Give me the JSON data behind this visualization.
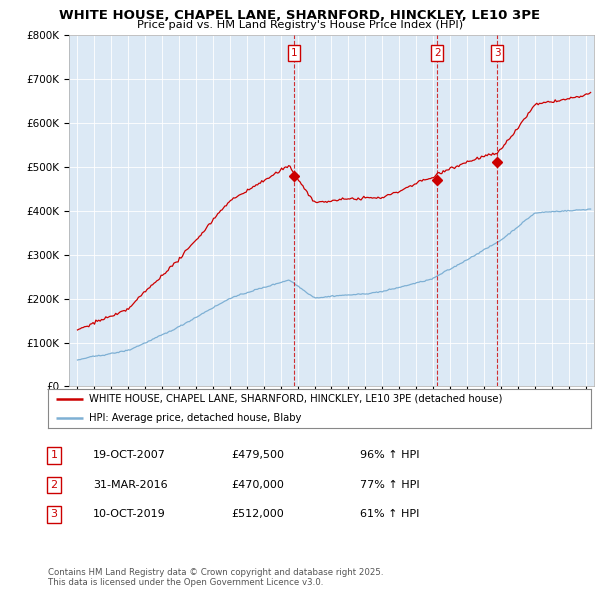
{
  "title": "WHITE HOUSE, CHAPEL LANE, SHARNFORD, HINCKLEY, LE10 3PE",
  "subtitle": "Price paid vs. HM Land Registry's House Price Index (HPI)",
  "house_color": "#cc0000",
  "hpi_color": "#7eb0d4",
  "plot_bg_color": "#dce9f5",
  "ylim": [
    0,
    800000
  ],
  "yticks": [
    0,
    100000,
    200000,
    300000,
    400000,
    500000,
    600000,
    700000,
    800000
  ],
  "ytick_labels": [
    "£0",
    "£100K",
    "£200K",
    "£300K",
    "£400K",
    "£500K",
    "£600K",
    "£700K",
    "£800K"
  ],
  "sales": [
    {
      "date": 2007.8,
      "price": 479500,
      "label": "1"
    },
    {
      "date": 2016.25,
      "price": 470000,
      "label": "2"
    },
    {
      "date": 2019.78,
      "price": 512000,
      "label": "3"
    }
  ],
  "sale_labels": [
    {
      "num": "1",
      "date": "19-OCT-2007",
      "price": "£479,500",
      "pct": "96% ↑ HPI"
    },
    {
      "num": "2",
      "date": "31-MAR-2016",
      "price": "£470,000",
      "pct": "77% ↑ HPI"
    },
    {
      "num": "3",
      "date": "10-OCT-2019",
      "price": "£512,000",
      "pct": "61% ↑ HPI"
    }
  ],
  "legend_house": "WHITE HOUSE, CHAPEL LANE, SHARNFORD, HINCKLEY, LE10 3PE (detached house)",
  "legend_hpi": "HPI: Average price, detached house, Blaby",
  "footnote": "Contains HM Land Registry data © Crown copyright and database right 2025.\nThis data is licensed under the Open Government Licence v3.0.",
  "xlim_start": 1994.5,
  "xlim_end": 2025.5,
  "xticks": [
    1995,
    1996,
    1997,
    1998,
    1999,
    2000,
    2001,
    2002,
    2003,
    2004,
    2005,
    2006,
    2007,
    2008,
    2009,
    2010,
    2011,
    2012,
    2013,
    2014,
    2015,
    2016,
    2017,
    2018,
    2019,
    2020,
    2021,
    2022,
    2023,
    2024,
    2025
  ]
}
